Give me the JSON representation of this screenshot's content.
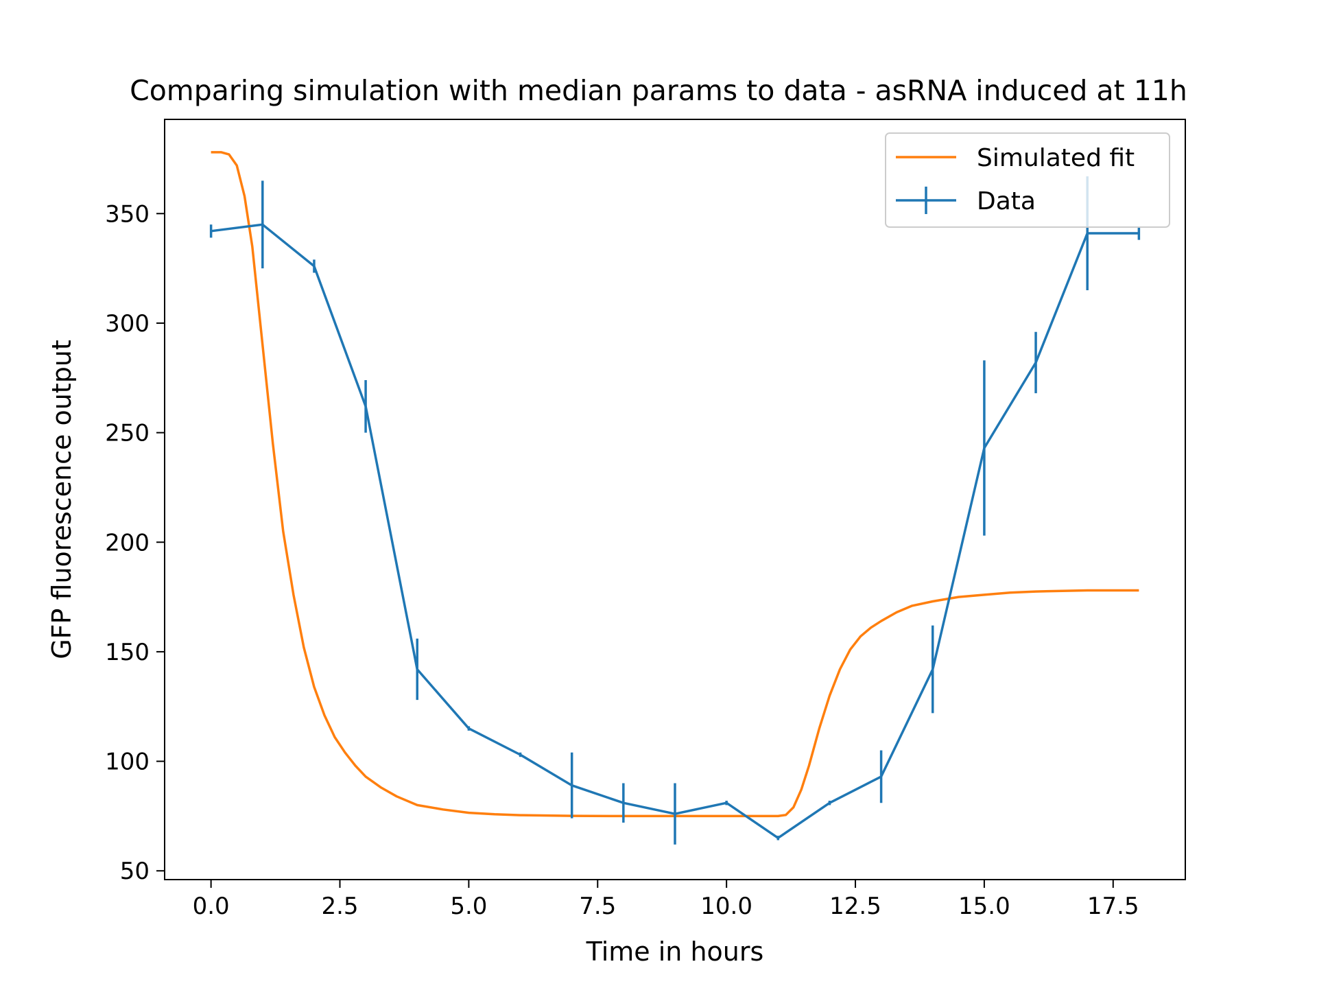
{
  "chart_data": {
    "type": "line",
    "title": "Comparing simulation with median params to data - asRNA induced at 11h",
    "xlabel": "Time in hours",
    "ylabel": "GFP fluorescence output",
    "xlim": [
      -0.9,
      18.9
    ],
    "ylim": [
      46,
      393
    ],
    "xticks": [
      "0.0",
      "2.5",
      "5.0",
      "7.5",
      "10.0",
      "12.5",
      "15.0",
      "17.5"
    ],
    "yticks": [
      "50",
      "100",
      "150",
      "200",
      "250",
      "300",
      "350"
    ],
    "legend_position": "top-right",
    "grid": false,
    "series": [
      {
        "name": "Simulated fit",
        "kind": "line",
        "color": "#ff7f0e",
        "x": [
          0,
          0.2,
          0.35,
          0.5,
          0.65,
          0.8,
          1.0,
          1.2,
          1.4,
          1.6,
          1.8,
          2.0,
          2.2,
          2.4,
          2.6,
          2.8,
          3.0,
          3.3,
          3.6,
          4.0,
          4.5,
          5.0,
          5.5,
          6.0,
          7.0,
          8.0,
          9.0,
          10.0,
          11.0,
          11.15,
          11.3,
          11.45,
          11.6,
          11.8,
          12.0,
          12.2,
          12.4,
          12.6,
          12.8,
          13.0,
          13.3,
          13.6,
          14.0,
          14.5,
          15.0,
          15.5,
          16.0,
          17.0,
          18.0
        ],
        "y": [
          378,
          378,
          377,
          372,
          358,
          335,
          290,
          245,
          205,
          176,
          152,
          134,
          121,
          111,
          104,
          98,
          93,
          88,
          84,
          80,
          78,
          76.5,
          75.8,
          75.4,
          75.1,
          75,
          75,
          75,
          75,
          75.5,
          79,
          87,
          98,
          115,
          130,
          142,
          151,
          157,
          161,
          164,
          168,
          171,
          173,
          175,
          176,
          177,
          177.5,
          178,
          178
        ]
      },
      {
        "name": "Data",
        "kind": "errorbar",
        "color": "#1f77b4",
        "x": [
          0,
          1,
          2,
          3,
          4,
          5,
          6,
          7,
          8,
          9,
          10,
          11,
          12,
          13,
          14,
          15,
          16,
          17,
          18
        ],
        "y": [
          342,
          345,
          326,
          262,
          142,
          115,
          103,
          89,
          81,
          76,
          81,
          65,
          81,
          93,
          142,
          243,
          282,
          341,
          341
        ],
        "yerr": [
          3,
          20,
          3,
          12,
          14,
          1,
          1,
          15,
          9,
          14,
          1,
          1,
          1,
          12,
          20,
          40,
          14,
          26,
          3
        ]
      }
    ]
  }
}
